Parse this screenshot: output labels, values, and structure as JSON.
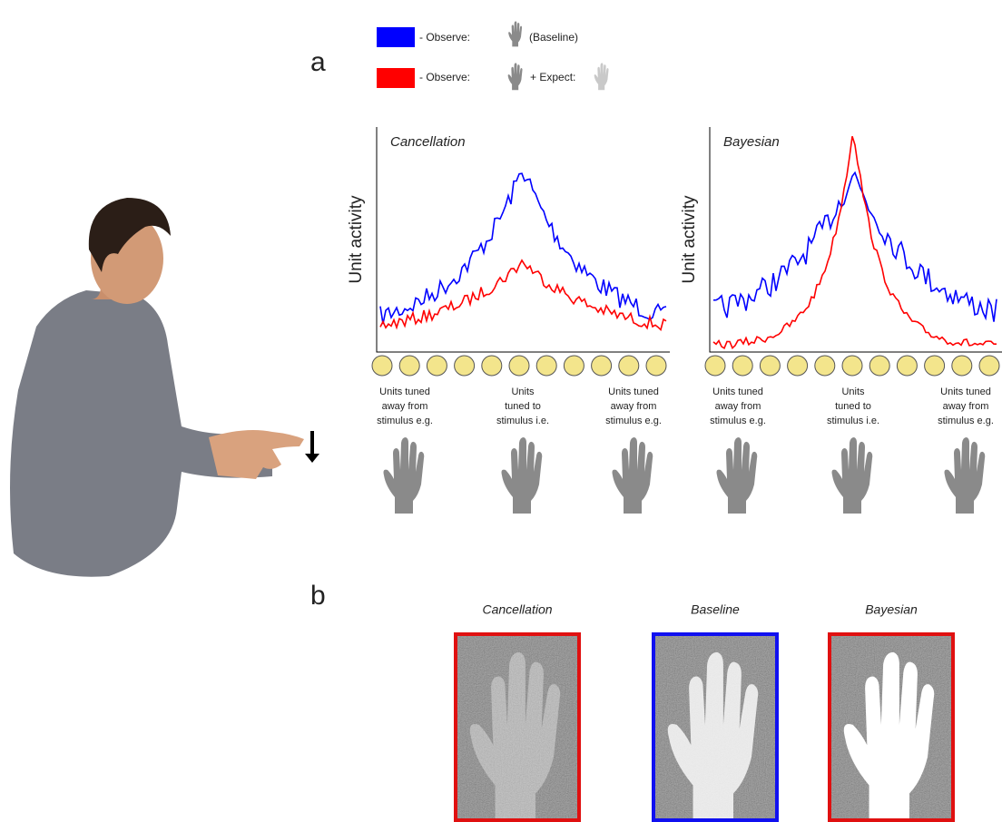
{
  "labels": {
    "a": "a",
    "b": "b"
  },
  "legend": [
    {
      "color": "#0000ff",
      "parts": [
        "- Observe:",
        "(Baseline)"
      ]
    },
    {
      "color": "#ff0000",
      "parts": [
        "- Observe:",
        "+ Expect:"
      ]
    }
  ],
  "panels": [
    {
      "title": "Cancellation",
      "y_label": "Unit activity",
      "unit_labels": [
        [
          "Units tuned",
          "away from",
          "stimulus e.g."
        ],
        [
          "Units",
          "tuned to",
          "stimulus i.e."
        ],
        [
          "Units tuned",
          "away from",
          "stimulus e.g."
        ]
      ]
    },
    {
      "title": "Bayesian",
      "y_label": "Unit activity",
      "unit_labels": [
        [
          "Units tuned",
          "away from",
          "stimulus e.g."
        ],
        [
          "Units",
          "tuned to",
          "stimulus i.e."
        ],
        [
          "Units tuned",
          "away from",
          "stimulus e.g."
        ]
      ]
    }
  ],
  "images": [
    {
      "title": "Cancellation",
      "border": "#e01010"
    },
    {
      "title": "Baseline",
      "border": "#1010f0"
    },
    {
      "title": "Bayesian",
      "border": "#e01010"
    }
  ]
}
